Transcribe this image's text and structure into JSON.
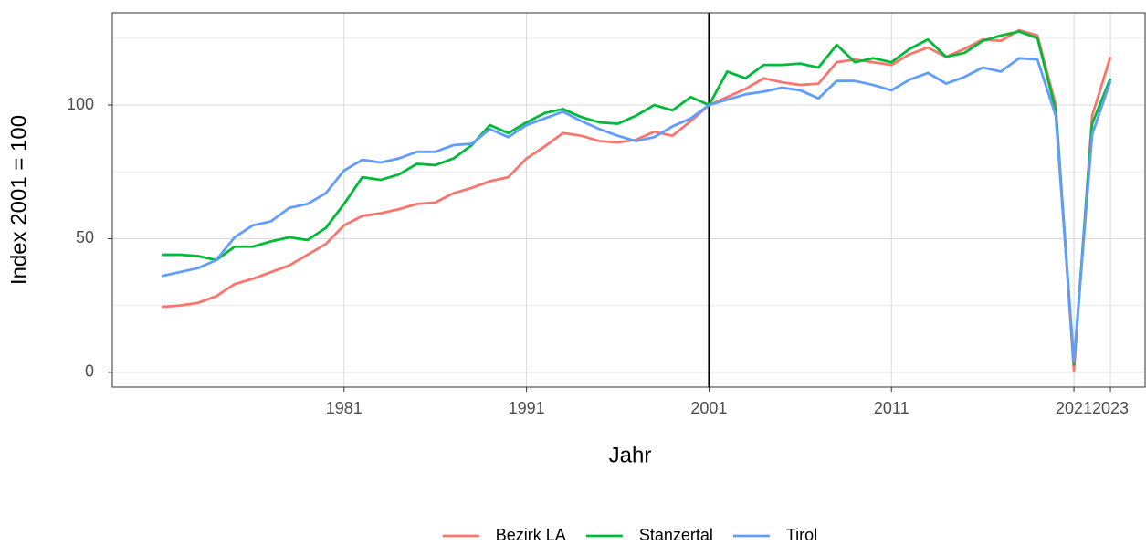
{
  "chart_data": {
    "type": "line",
    "xlabel": "Jahr",
    "ylabel": "Index 2001 = 100",
    "x": [
      1971,
      1972,
      1973,
      1974,
      1975,
      1976,
      1977,
      1978,
      1979,
      1980,
      1981,
      1982,
      1983,
      1984,
      1985,
      1986,
      1987,
      1988,
      1989,
      1990,
      1991,
      1992,
      1993,
      1994,
      1995,
      1996,
      1997,
      1998,
      1999,
      2000,
      2001,
      2002,
      2003,
      2004,
      2005,
      2006,
      2007,
      2008,
      2009,
      2010,
      2011,
      2012,
      2013,
      2014,
      2015,
      2016,
      2017,
      2018,
      2019,
      2020,
      2021,
      2022,
      2023
    ],
    "series": [
      {
        "name": "Bezirk LA",
        "color": "#F8766D",
        "values": [
          24.5,
          25,
          26,
          28.5,
          33,
          35,
          37.5,
          40,
          44,
          48,
          55,
          58.5,
          59.5,
          61,
          63,
          63.5,
          67,
          69,
          71.5,
          73,
          80,
          84.5,
          89.5,
          88.5,
          86.5,
          86,
          87,
          90,
          88.5,
          94,
          100,
          103,
          106,
          110,
          108.5,
          107.5,
          108,
          116,
          117,
          116,
          115,
          119,
          121.5,
          118,
          121,
          124.5,
          124,
          128,
          126,
          100,
          0.5,
          96,
          118
        ]
      },
      {
        "name": "Stanzertal",
        "color": "#00BA38",
        "values": [
          44,
          44,
          43.5,
          42,
          47,
          47,
          49,
          50.5,
          49.5,
          54,
          63,
          73,
          72,
          74,
          78,
          77.5,
          80,
          85,
          92.5,
          89.5,
          93.5,
          97,
          98.5,
          95.5,
          93.5,
          93,
          96,
          100,
          98,
          103,
          100,
          112.5,
          110,
          115,
          115,
          115.5,
          114,
          122.5,
          116,
          117.5,
          116,
          121,
          124.5,
          118,
          119.5,
          124,
          126,
          127.5,
          125,
          98,
          3,
          93,
          110
        ]
      },
      {
        "name": "Tirol",
        "color": "#619CFF",
        "values": [
          36,
          37.5,
          39,
          42,
          50.5,
          55,
          56.5,
          61.5,
          63,
          67,
          75.5,
          79.5,
          78.5,
          80,
          82.5,
          82.5,
          85,
          85.5,
          91,
          88,
          92.5,
          95,
          97.5,
          94,
          91,
          88.5,
          86.5,
          88,
          92,
          95,
          100,
          102,
          104,
          105,
          106.5,
          105.5,
          102.5,
          109,
          109,
          107.5,
          105.5,
          109.5,
          112,
          108,
          110.5,
          114,
          112.5,
          117.5,
          117,
          96,
          4,
          89,
          109
        ]
      }
    ],
    "xlim": [
      1968.3,
      2024.9
    ],
    "xticks": [
      1981,
      1991,
      2001,
      2011,
      2021,
      2023
    ],
    "ylim": [
      -5.5,
      134.5
    ],
    "yticks": [
      0,
      50,
      100
    ],
    "y_minor_ticks": [
      25,
      75,
      125
    ],
    "vline": 2001,
    "grid": true,
    "legend": "bottom"
  }
}
